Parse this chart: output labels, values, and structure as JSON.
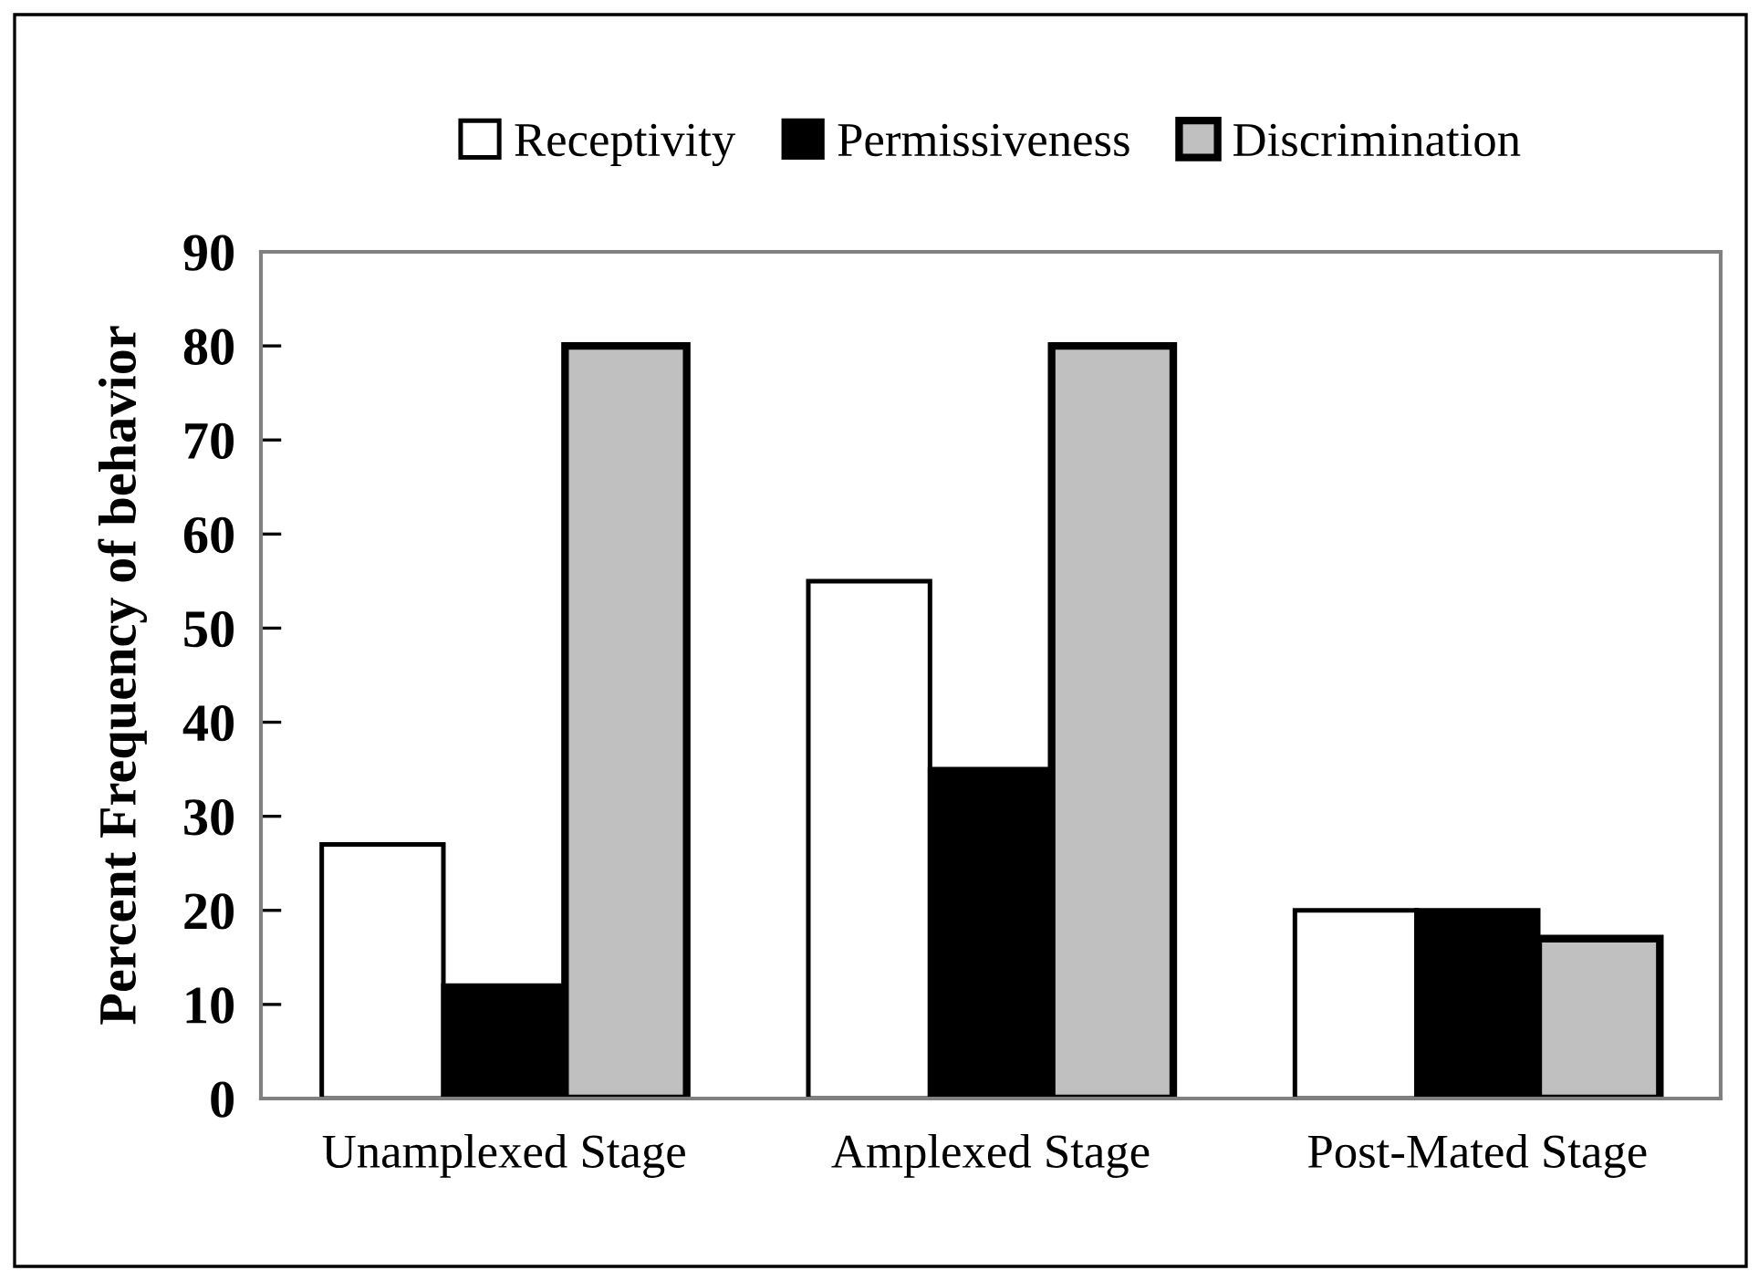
{
  "chart_data": {
    "type": "bar",
    "ylabel": "Percent Frequency of behavior",
    "categories": [
      "Unamplexed Stage",
      "Amplexed Stage",
      "Post-Mated Stage"
    ],
    "series": [
      {
        "name": "Receptivity",
        "color": "#ffffff",
        "values": [
          27,
          55,
          20
        ]
      },
      {
        "name": "Permissiveness",
        "color": "#000000",
        "values": [
          12,
          35,
          20
        ]
      },
      {
        "name": "Discrimination",
        "color": "#c0c0c0",
        "values": [
          80,
          80,
          17
        ]
      }
    ],
    "ylim": [
      0,
      90
    ],
    "yticks": [
      0,
      10,
      20,
      30,
      40,
      50,
      60,
      70,
      80,
      90
    ],
    "grid": false,
    "legend": "top"
  }
}
